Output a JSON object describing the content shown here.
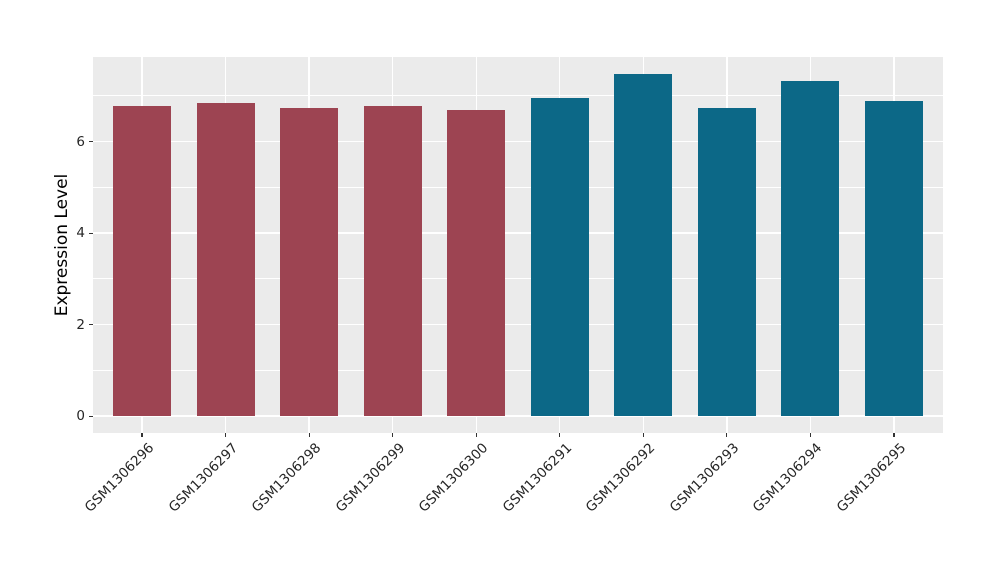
{
  "figure": {
    "background_color": "#FFFFFF",
    "panel_background_color": "#EBEBEB",
    "gridline_color": "#FFFFFF",
    "tick_color": "#333333",
    "axis_text_color": "#262626"
  },
  "chart_data": {
    "type": "bar",
    "title": "",
    "xlabel": "",
    "ylabel": "Expression Level",
    "categories": [
      "GSM1306296",
      "GSM1306297",
      "GSM1306298",
      "GSM1306299",
      "GSM1306300",
      "GSM1306291",
      "GSM1306292",
      "GSM1306293",
      "GSM1306294",
      "GSM1306295"
    ],
    "values": [
      6.78,
      6.85,
      6.73,
      6.78,
      6.7,
      6.95,
      7.48,
      6.74,
      7.32,
      6.89
    ],
    "bar_colors": [
      "#9D4452",
      "#9D4452",
      "#9D4452",
      "#9D4452",
      "#9D4452",
      "#0C6887",
      "#0C6887",
      "#0C6887",
      "#0C6887",
      "#0C6887"
    ],
    "group_color_left": "#9D4452",
    "group_color_right": "#0C6887",
    "yticks": [
      0,
      2,
      4,
      6
    ],
    "minor_gridlines": [
      1,
      3,
      5,
      7
    ],
    "ylim": [
      -0.37,
      7.85
    ],
    "x_tick_rotation_deg": 45,
    "grid": "on",
    "legend": null
  }
}
